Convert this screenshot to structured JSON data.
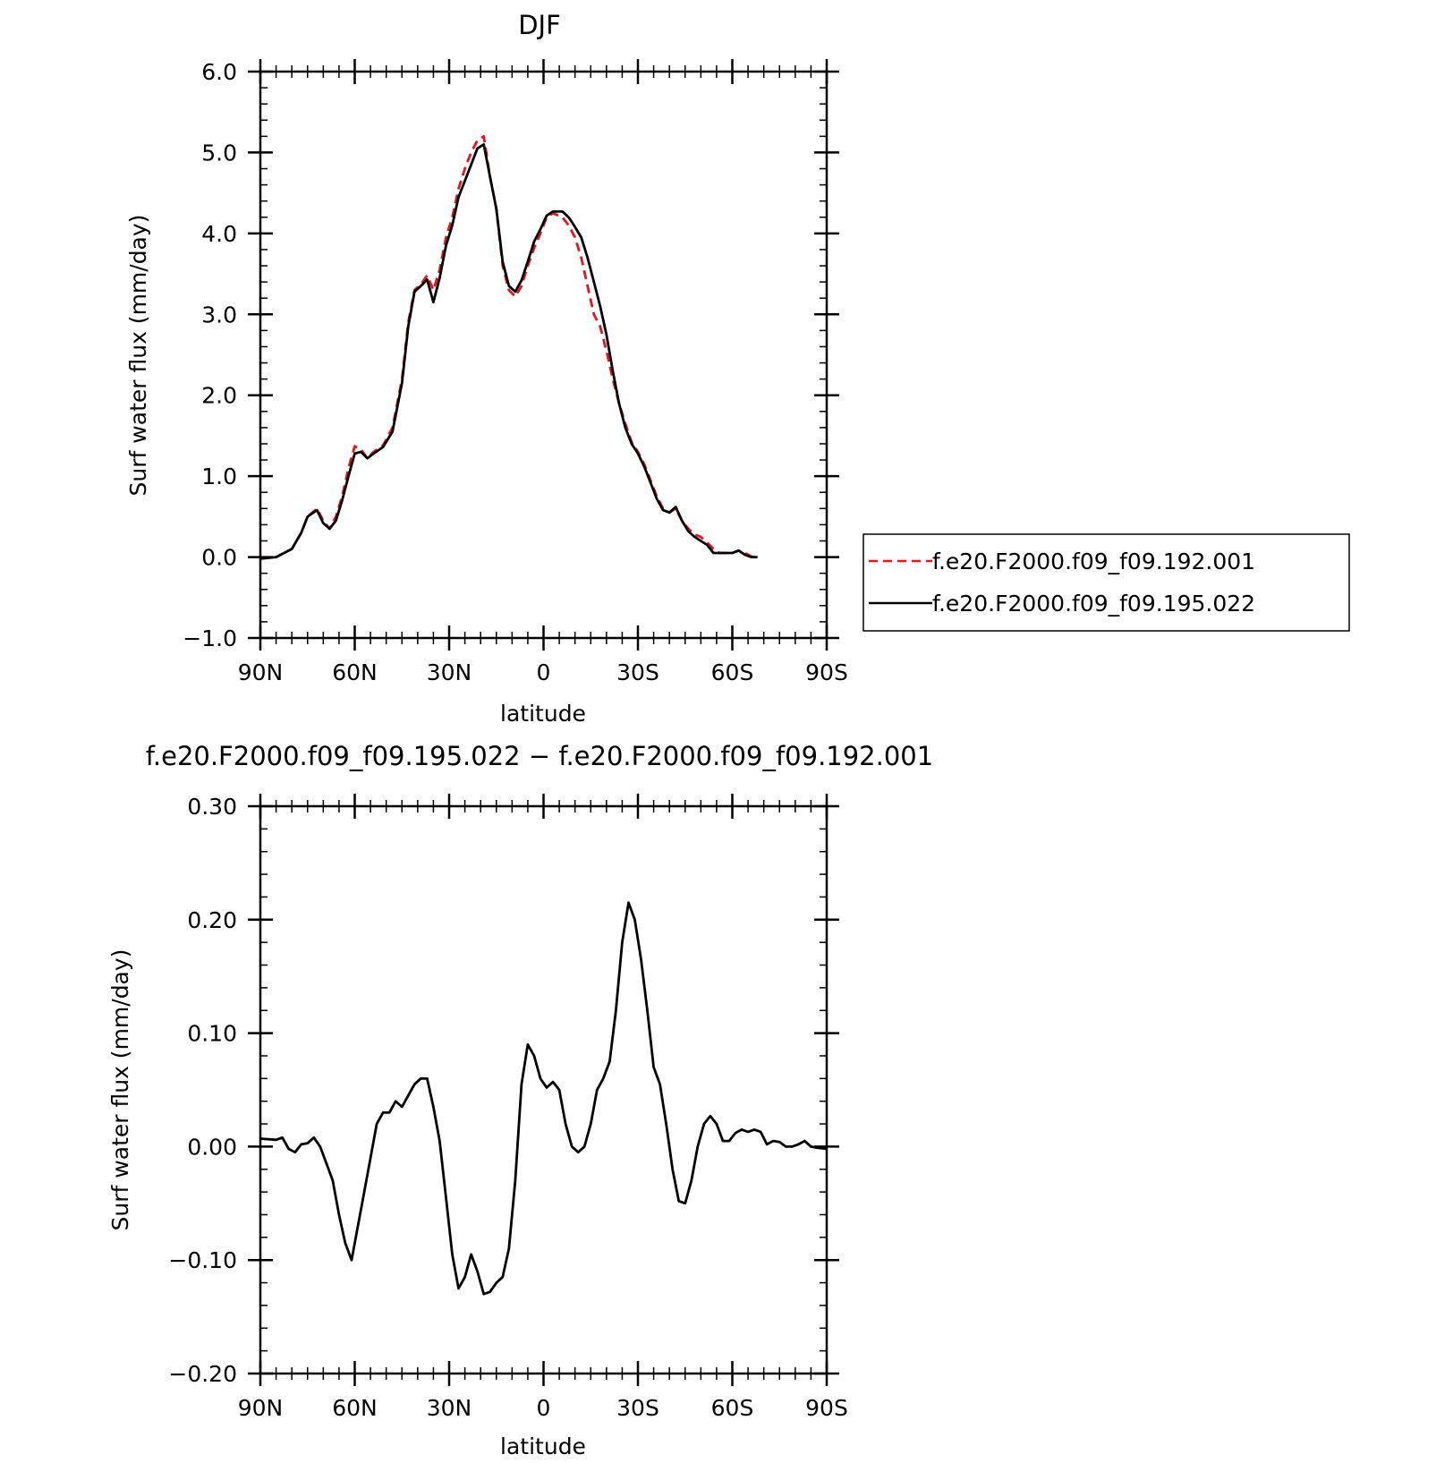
{
  "chart_data": [
    {
      "type": "line",
      "title": "DJF",
      "xlabel": "latitude",
      "ylabel": "Surf water flux (mm/day)",
      "xlim": [
        90,
        -90
      ],
      "ylim": [
        -1.0,
        6.0
      ],
      "x_tick_values": [
        90,
        60,
        30,
        0,
        -30,
        -60,
        -90
      ],
      "x_tick_labels": [
        "90N",
        "60N",
        "30N",
        "0",
        "30S",
        "60S",
        "90S"
      ],
      "y_tick_values": [
        -1.0,
        0.0,
        1.0,
        2.0,
        3.0,
        4.0,
        5.0,
        6.0
      ],
      "y_tick_labels": [
        "−1.0",
        "0.0",
        "1.0",
        "2.0",
        "3.0",
        "4.0",
        "5.0",
        "6.0"
      ],
      "legend_position": "right",
      "series": [
        {
          "name": "f.e20.F2000.f09_f09.192.001",
          "color": "#e8141b",
          "dash": "dashed",
          "points": [
            [
              90,
              -0.02
            ],
            [
              85,
              0.0
            ],
            [
              80,
              0.1
            ],
            [
              77,
              0.3
            ],
            [
              75,
              0.5
            ],
            [
              72,
              0.6
            ],
            [
              70,
              0.45
            ],
            [
              68,
              0.35
            ],
            [
              66,
              0.5
            ],
            [
              64,
              0.75
            ],
            [
              62,
              1.1
            ],
            [
              60,
              1.37
            ],
            [
              58,
              1.33
            ],
            [
              56,
              1.22
            ],
            [
              54,
              1.3
            ],
            [
              51,
              1.38
            ],
            [
              48,
              1.6
            ],
            [
              45,
              2.2
            ],
            [
              43,
              2.9
            ],
            [
              41,
              3.3
            ],
            [
              39,
              3.37
            ],
            [
              37,
              3.48
            ],
            [
              35,
              3.3
            ],
            [
              33,
              3.55
            ],
            [
              31,
              3.95
            ],
            [
              29,
              4.2
            ],
            [
              27,
              4.55
            ],
            [
              25,
              4.8
            ],
            [
              23,
              5.0
            ],
            [
              21,
              5.15
            ],
            [
              19,
              5.2
            ],
            [
              17,
              4.7
            ],
            [
              15,
              4.3
            ],
            [
              13,
              3.6
            ],
            [
              11,
              3.3
            ],
            [
              9,
              3.22
            ],
            [
              7,
              3.35
            ],
            [
              5,
              3.6
            ],
            [
              3,
              3.82
            ],
            [
              1,
              4.0
            ],
            [
              -1,
              4.2
            ],
            [
              -3,
              4.25
            ],
            [
              -6,
              4.2
            ],
            [
              -8,
              4.1
            ],
            [
              -10,
              3.95
            ],
            [
              -12,
              3.7
            ],
            [
              -14,
              3.35
            ],
            [
              -16,
              3.0
            ],
            [
              -18,
              2.85
            ],
            [
              -20,
              2.55
            ],
            [
              -22,
              2.2
            ],
            [
              -24,
              1.9
            ],
            [
              -26,
              1.65
            ],
            [
              -28,
              1.42
            ],
            [
              -30,
              1.3
            ],
            [
              -32,
              1.15
            ],
            [
              -34,
              0.95
            ],
            [
              -36,
              0.75
            ],
            [
              -38,
              0.6
            ],
            [
              -40,
              0.55
            ],
            [
              -42,
              0.6
            ],
            [
              -44,
              0.45
            ],
            [
              -46,
              0.35
            ],
            [
              -48,
              0.28
            ],
            [
              -50,
              0.25
            ],
            [
              -52,
              0.18
            ],
            [
              -54,
              0.1
            ],
            [
              -56,
              0.05
            ],
            [
              -58,
              0.05
            ],
            [
              -60,
              0.05
            ],
            [
              -62,
              0.08
            ],
            [
              -64,
              0.05
            ],
            [
              -66,
              0.01
            ],
            [
              -68,
              -0.01
            ]
          ]
        },
        {
          "name": "f.e20.F2000.f09_f09.195.022",
          "color": "#000000",
          "dash": "solid",
          "points": [
            [
              90,
              -0.02
            ],
            [
              85,
              0.0
            ],
            [
              80,
              0.1
            ],
            [
              77,
              0.3
            ],
            [
              75,
              0.5
            ],
            [
              72,
              0.58
            ],
            [
              70,
              0.42
            ],
            [
              68,
              0.35
            ],
            [
              66,
              0.45
            ],
            [
              64,
              0.7
            ],
            [
              62,
              1.0
            ],
            [
              60,
              1.28
            ],
            [
              58,
              1.3
            ],
            [
              56,
              1.22
            ],
            [
              54,
              1.28
            ],
            [
              51,
              1.36
            ],
            [
              48,
              1.55
            ],
            [
              45,
              2.15
            ],
            [
              43,
              2.85
            ],
            [
              41,
              3.28
            ],
            [
              39,
              3.35
            ],
            [
              37,
              3.43
            ],
            [
              35,
              3.15
            ],
            [
              33,
              3.45
            ],
            [
              31,
              3.85
            ],
            [
              29,
              4.1
            ],
            [
              27,
              4.45
            ],
            [
              25,
              4.65
            ],
            [
              23,
              4.85
            ],
            [
              21,
              5.05
            ],
            [
              19,
              5.1
            ],
            [
              17,
              4.7
            ],
            [
              15,
              4.3
            ],
            [
              13,
              3.65
            ],
            [
              11,
              3.35
            ],
            [
              9,
              3.28
            ],
            [
              7,
              3.42
            ],
            [
              5,
              3.65
            ],
            [
              3,
              3.9
            ],
            [
              1,
              4.05
            ],
            [
              -1,
              4.22
            ],
            [
              -3,
              4.27
            ],
            [
              -6,
              4.27
            ],
            [
              -8,
              4.2
            ],
            [
              -10,
              4.08
            ],
            [
              -12,
              3.95
            ],
            [
              -14,
              3.7
            ],
            [
              -16,
              3.4
            ],
            [
              -18,
              3.1
            ],
            [
              -20,
              2.75
            ],
            [
              -22,
              2.3
            ],
            [
              -24,
              1.9
            ],
            [
              -26,
              1.6
            ],
            [
              -28,
              1.4
            ],
            [
              -30,
              1.28
            ],
            [
              -32,
              1.12
            ],
            [
              -34,
              0.92
            ],
            [
              -36,
              0.72
            ],
            [
              -38,
              0.58
            ],
            [
              -40,
              0.55
            ],
            [
              -42,
              0.62
            ],
            [
              -44,
              0.45
            ],
            [
              -46,
              0.32
            ],
            [
              -48,
              0.25
            ],
            [
              -50,
              0.2
            ],
            [
              -52,
              0.15
            ],
            [
              -54,
              0.05
            ],
            [
              -56,
              0.05
            ],
            [
              -58,
              0.05
            ],
            [
              -60,
              0.05
            ],
            [
              -62,
              0.08
            ],
            [
              -64,
              0.03
            ],
            [
              -66,
              0.0
            ],
            [
              -68,
              0.0
            ]
          ]
        }
      ]
    },
    {
      "type": "line",
      "title": "f.e20.F2000.f09_f09.195.022 − f.e20.F2000.f09_f09.192.001",
      "xlabel": "latitude",
      "ylabel": "Surf water flux (mm/day)",
      "xlim": [
        90,
        -90
      ],
      "ylim": [
        -0.2,
        0.3
      ],
      "x_tick_values": [
        90,
        60,
        30,
        0,
        -30,
        -60,
        -90
      ],
      "x_tick_labels": [
        "90N",
        "60N",
        "30N",
        "0",
        "30S",
        "60S",
        "90S"
      ],
      "y_tick_values": [
        -0.2,
        -0.1,
        0.0,
        0.1,
        0.2,
        0.3
      ],
      "y_tick_labels": [
        "−0.20",
        "−0.10",
        "0.00",
        "0.10",
        "0.20",
        "0.30"
      ],
      "series": [
        {
          "name": "",
          "color": "#000000",
          "dash": "solid",
          "points": [
            [
              90,
              0.007
            ],
            [
              85,
              0.006
            ],
            [
              83,
              0.008
            ],
            [
              81,
              -0.002
            ],
            [
              79,
              -0.005
            ],
            [
              77,
              0.002
            ],
            [
              75,
              0.003
            ],
            [
              73,
              0.008
            ],
            [
              71,
              0.0
            ],
            [
              69,
              -0.015
            ],
            [
              67,
              -0.03
            ],
            [
              65,
              -0.06
            ],
            [
              63,
              -0.085
            ],
            [
              61,
              -0.1
            ],
            [
              59,
              -0.07
            ],
            [
              57,
              -0.04
            ],
            [
              55,
              -0.01
            ],
            [
              53,
              0.02
            ],
            [
              51,
              0.03
            ],
            [
              49,
              0.03
            ],
            [
              47,
              0.04
            ],
            [
              45,
              0.035
            ],
            [
              43,
              0.045
            ],
            [
              41,
              0.055
            ],
            [
              39,
              0.06
            ],
            [
              37,
              0.06
            ],
            [
              35,
              0.035
            ],
            [
              33,
              0.005
            ],
            [
              31,
              -0.045
            ],
            [
              29,
              -0.095
            ],
            [
              27,
              -0.125
            ],
            [
              25,
              -0.115
            ],
            [
              23,
              -0.095
            ],
            [
              21,
              -0.11
            ],
            [
              19,
              -0.13
            ],
            [
              17,
              -0.128
            ],
            [
              15,
              -0.12
            ],
            [
              13,
              -0.115
            ],
            [
              11,
              -0.09
            ],
            [
              9,
              -0.03
            ],
            [
              7,
              0.055
            ],
            [
              5,
              0.09
            ],
            [
              3,
              0.08
            ],
            [
              1,
              0.06
            ],
            [
              -1,
              0.052
            ],
            [
              -3,
              0.057
            ],
            [
              -5,
              0.05
            ],
            [
              -7,
              0.02
            ],
            [
              -9,
              0.0
            ],
            [
              -11,
              -0.005
            ],
            [
              -13,
              0.0
            ],
            [
              -15,
              0.02
            ],
            [
              -17,
              0.05
            ],
            [
              -19,
              0.06
            ],
            [
              -21,
              0.075
            ],
            [
              -23,
              0.12
            ],
            [
              -25,
              0.18
            ],
            [
              -27,
              0.215
            ],
            [
              -29,
              0.2
            ],
            [
              -31,
              0.165
            ],
            [
              -33,
              0.12
            ],
            [
              -35,
              0.07
            ],
            [
              -37,
              0.055
            ],
            [
              -39,
              0.02
            ],
            [
              -41,
              -0.02
            ],
            [
              -43,
              -0.048
            ],
            [
              -45,
              -0.05
            ],
            [
              -47,
              -0.03
            ],
            [
              -49,
              0.0
            ],
            [
              -51,
              0.02
            ],
            [
              -53,
              0.027
            ],
            [
              -55,
              0.02
            ],
            [
              -57,
              0.005
            ],
            [
              -59,
              0.005
            ],
            [
              -61,
              0.012
            ],
            [
              -63,
              0.015
            ],
            [
              -65,
              0.013
            ],
            [
              -67,
              0.015
            ],
            [
              -69,
              0.013
            ],
            [
              -71,
              0.002
            ],
            [
              -73,
              0.005
            ],
            [
              -75,
              0.004
            ],
            [
              -77,
              0.0
            ],
            [
              -79,
              0.0
            ],
            [
              -81,
              0.002
            ],
            [
              -83,
              0.005
            ],
            [
              -85,
              0.0
            ],
            [
              -87,
              -0.001
            ],
            [
              -90,
              -0.002
            ]
          ]
        }
      ]
    }
  ]
}
